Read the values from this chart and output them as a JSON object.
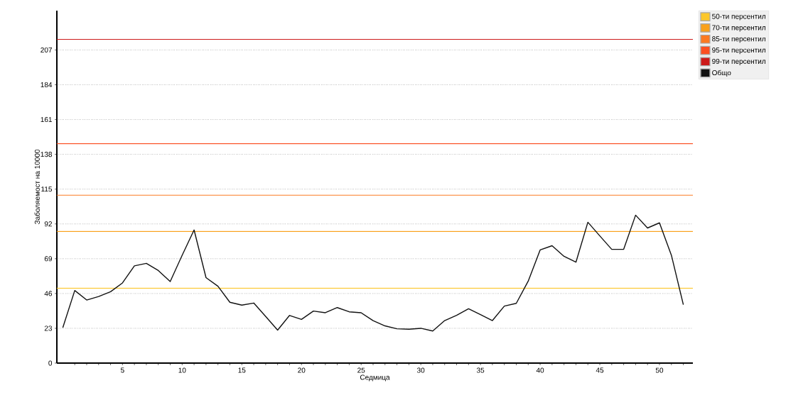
{
  "chart_data": {
    "type": "line",
    "xlabel": "Седмица",
    "ylabel": "Заболяемост на 10000",
    "x": [
      0,
      1,
      2,
      3,
      4,
      5,
      6,
      7,
      8,
      9,
      10,
      11,
      12,
      13,
      14,
      15,
      16,
      17,
      18,
      19,
      20,
      21,
      22,
      23,
      24,
      25,
      26,
      27,
      28,
      29,
      30,
      31,
      32,
      33,
      34,
      35,
      36,
      37,
      38,
      39,
      40,
      41,
      42,
      43,
      44,
      45,
      46,
      47,
      48,
      49,
      50,
      51,
      52
    ],
    "series": [
      {
        "name": "Общо",
        "color": "#111111",
        "values": [
          23.4,
          48,
          41.7,
          44,
          47.2,
          53,
          64.3,
          65.9,
          61.2,
          53.9,
          71.3,
          88,
          56.5,
          50.8,
          40.2,
          38.3,
          39.7,
          30.8,
          21.8,
          31.5,
          28.9,
          34.4,
          33.3,
          36.7,
          33.9,
          33.3,
          28.1,
          24.6,
          22.7,
          22.4,
          23,
          21.2,
          28.1,
          31.6,
          35.9,
          32,
          28.1,
          37.7,
          39.5,
          54.2,
          74.8,
          77.6,
          70.6,
          66.7,
          93.1,
          84.1,
          75.2,
          75.2,
          97.8,
          89.3,
          92.7,
          71.3,
          38.6
        ]
      }
    ],
    "xlim": [
      -0.5,
      52.8
    ],
    "ylim": [
      0,
      233
    ],
    "xticks": [
      {
        "value": 1,
        "label": null
      },
      {
        "value": 2,
        "label": null
      },
      {
        "value": 3,
        "label": null
      },
      {
        "value": 4,
        "label": null
      },
      5,
      {
        "value": 6,
        "label": null
      },
      {
        "value": 7,
        "label": null
      },
      {
        "value": 8,
        "label": null
      },
      {
        "value": 9,
        "label": null
      },
      10,
      {
        "value": 11,
        "label": null
      },
      {
        "value": 12,
        "label": null
      },
      {
        "value": 13,
        "label": null
      },
      {
        "value": 14,
        "label": null
      },
      15,
      {
        "value": 16,
        "label": null
      },
      {
        "value": 17,
        "label": null
      },
      {
        "value": 18,
        "label": null
      },
      {
        "value": 19,
        "label": null
      },
      20,
      {
        "value": 21,
        "label": null
      },
      {
        "value": 22,
        "label": null
      },
      {
        "value": 23,
        "label": null
      },
      {
        "value": 24,
        "label": null
      },
      25,
      {
        "value": 26,
        "label": null
      },
      {
        "value": 27,
        "label": null
      },
      {
        "value": 28,
        "label": null
      },
      {
        "value": 29,
        "label": null
      },
      30,
      {
        "value": 31,
        "label": null
      },
      {
        "value": 32,
        "label": null
      },
      {
        "value": 33,
        "label": null
      },
      {
        "value": 34,
        "label": null
      },
      35,
      {
        "value": 36,
        "label": null
      },
      {
        "value": 37,
        "label": null
      },
      {
        "value": 38,
        "label": null
      },
      {
        "value": 39,
        "label": null
      },
      40,
      {
        "value": 41,
        "label": null
      },
      {
        "value": 42,
        "label": null
      },
      {
        "value": 43,
        "label": null
      },
      {
        "value": 44,
        "label": null
      },
      45,
      {
        "value": 46,
        "label": null
      },
      {
        "value": 47,
        "label": null
      },
      {
        "value": 48,
        "label": null
      },
      {
        "value": 49,
        "label": null
      },
      50,
      {
        "value": 51,
        "label": null
      },
      {
        "value": 52,
        "label": null
      }
    ],
    "yticks": [
      0,
      23,
      46,
      69,
      92,
      115,
      138,
      161,
      184,
      207
    ],
    "ref_lines": [
      {
        "axis": "y",
        "value": 49.5,
        "label": "50-ти персентил",
        "color": "#fcc72a"
      },
      {
        "axis": "y",
        "value": 87,
        "label": "70-ти персентил",
        "color": "#f9a11b"
      },
      {
        "axis": "y",
        "value": 111,
        "label": "85-ти персентил",
        "color": "#fb7a22"
      },
      {
        "axis": "y",
        "value": 145,
        "label": "95-ти персентил",
        "color": "#fb4f22"
      },
      {
        "axis": "y",
        "value": 214,
        "label": "99-ти персентил",
        "color": "#cc1a1a"
      }
    ],
    "grid": "y",
    "legend": "top right"
  }
}
